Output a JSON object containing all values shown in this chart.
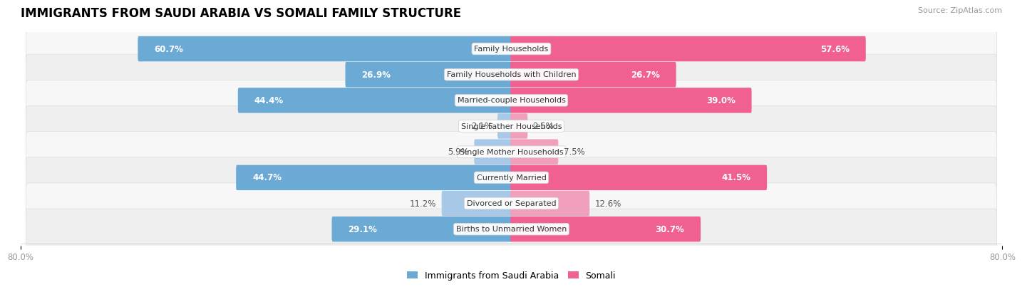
{
  "title": "IMMIGRANTS FROM SAUDI ARABIA VS SOMALI FAMILY STRUCTURE",
  "source": "Source: ZipAtlas.com",
  "categories": [
    "Family Households",
    "Family Households with Children",
    "Married-couple Households",
    "Single Father Households",
    "Single Mother Households",
    "Currently Married",
    "Divorced or Separated",
    "Births to Unmarried Women"
  ],
  "saudi_values": [
    60.7,
    26.9,
    44.4,
    2.1,
    5.9,
    44.7,
    11.2,
    29.1
  ],
  "somali_values": [
    57.6,
    26.7,
    39.0,
    2.5,
    7.5,
    41.5,
    12.6,
    30.7
  ],
  "saudi_color_large": "#6aaad4",
  "saudi_color_small": "#a8c8e8",
  "somali_color_large": "#f06090",
  "somali_color_small": "#f0a0bc",
  "axis_max": 80.0,
  "row_bg_even": "#f7f7f7",
  "row_bg_odd": "#efefef",
  "label_fontsize": 8.0,
  "value_fontsize": 8.5,
  "title_fontsize": 12,
  "legend_label_saudi": "Immigrants from Saudi Arabia",
  "legend_label_somali": "Somali",
  "x_tick_label_left": "80.0%",
  "x_tick_label_right": "80.0%",
  "large_threshold": 15
}
